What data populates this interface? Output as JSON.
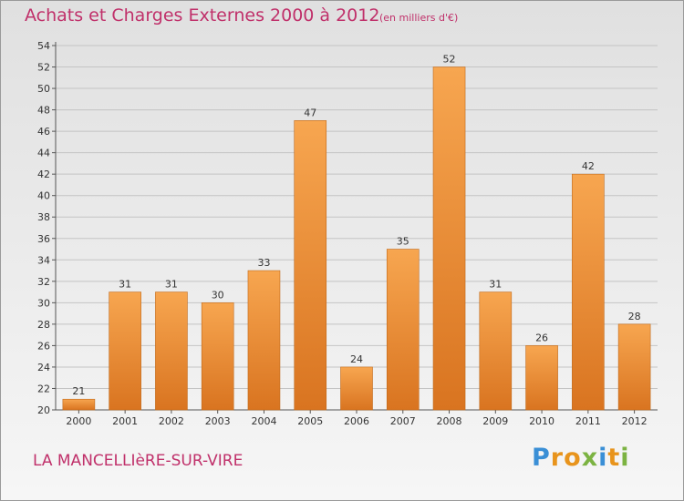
{
  "chart_data": {
    "type": "bar",
    "title": "Achats et Charges Externes 2000 à 2012",
    "unit_label": "(en milliers d'€)",
    "categories": [
      "2000",
      "2001",
      "2002",
      "2003",
      "2004",
      "2005",
      "2006",
      "2007",
      "2008",
      "2009",
      "2010",
      "2011",
      "2012"
    ],
    "values": [
      21,
      31,
      31,
      30,
      33,
      47,
      24,
      35,
      52,
      31,
      26,
      42,
      28
    ],
    "ylim": [
      20,
      54
    ],
    "ytick_step": 2,
    "xlabel": "",
    "ylabel": "",
    "grid": true,
    "bar_color_top": "#f7a650",
    "bar_color_bottom": "#d97420"
  },
  "footer": {
    "commune": "LA MANCELLIèRE-SUR-VIRE",
    "logo_letters": [
      {
        "ch": "P",
        "color": "#3a8fd6"
      },
      {
        "ch": "r",
        "color": "#e8941c"
      },
      {
        "ch": "o",
        "color": "#e8941c"
      },
      {
        "ch": "x",
        "color": "#7cb342"
      },
      {
        "ch": "i",
        "color": "#3a8fd6"
      },
      {
        "ch": "t",
        "color": "#e8941c"
      },
      {
        "ch": "i",
        "color": "#7cb342"
      }
    ]
  }
}
